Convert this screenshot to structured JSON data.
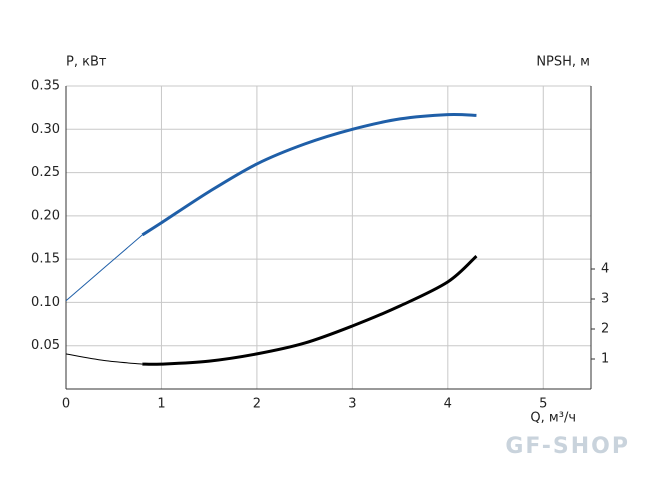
{
  "chart_data": {
    "type": "line",
    "y_label": "P, кВт",
    "y2_label": "NPSH, м",
    "x_label": "Q, м³/ч",
    "watermark": "GF-SHOP",
    "xlim": [
      0,
      5.5
    ],
    "xticks": [
      0,
      1,
      2,
      3,
      4,
      5
    ],
    "ylim": [
      0,
      0.35
    ],
    "yticks": [
      0.05,
      {
        "value": 0.1,
        "label": "0.10"
      },
      0.15,
      {
        "value": 0.2,
        "label": "0.20"
      },
      0.25,
      {
        "value": 0.3,
        "label": "0.30"
      },
      0.35
    ],
    "y2lim": [
      0,
      10.1
    ],
    "y2ticks": [
      1,
      2,
      3,
      4
    ],
    "grid": true,
    "series": [
      {
        "color": "#1f5fa8",
        "width": 1,
        "axis": "y",
        "x": [
          0,
          0.4,
          0.8
        ],
        "values": [
          0.102,
          0.14,
          0.178
        ]
      },
      {
        "color": "#1f5fa8",
        "width": 3,
        "axis": "y",
        "x": [
          0.8,
          1,
          1.5,
          2,
          2.5,
          3,
          3.5,
          4,
          4.3
        ],
        "values": [
          0.178,
          0.192,
          0.228,
          0.26,
          0.283,
          0.3,
          0.312,
          0.317,
          0.316
        ]
      },
      {
        "color": "#000000",
        "width": 1,
        "axis": "y2",
        "x": [
          0,
          0.4,
          0.8
        ],
        "values": [
          1.17,
          0.95,
          0.83
        ]
      },
      {
        "color": "#000000",
        "width": 3,
        "axis": "y2",
        "x": [
          0.8,
          1,
          1.5,
          2,
          2.5,
          3,
          3.5,
          4,
          4.3
        ],
        "values": [
          0.83,
          0.83,
          0.93,
          1.17,
          1.53,
          2.1,
          2.77,
          3.57,
          4.43
        ]
      }
    ]
  }
}
